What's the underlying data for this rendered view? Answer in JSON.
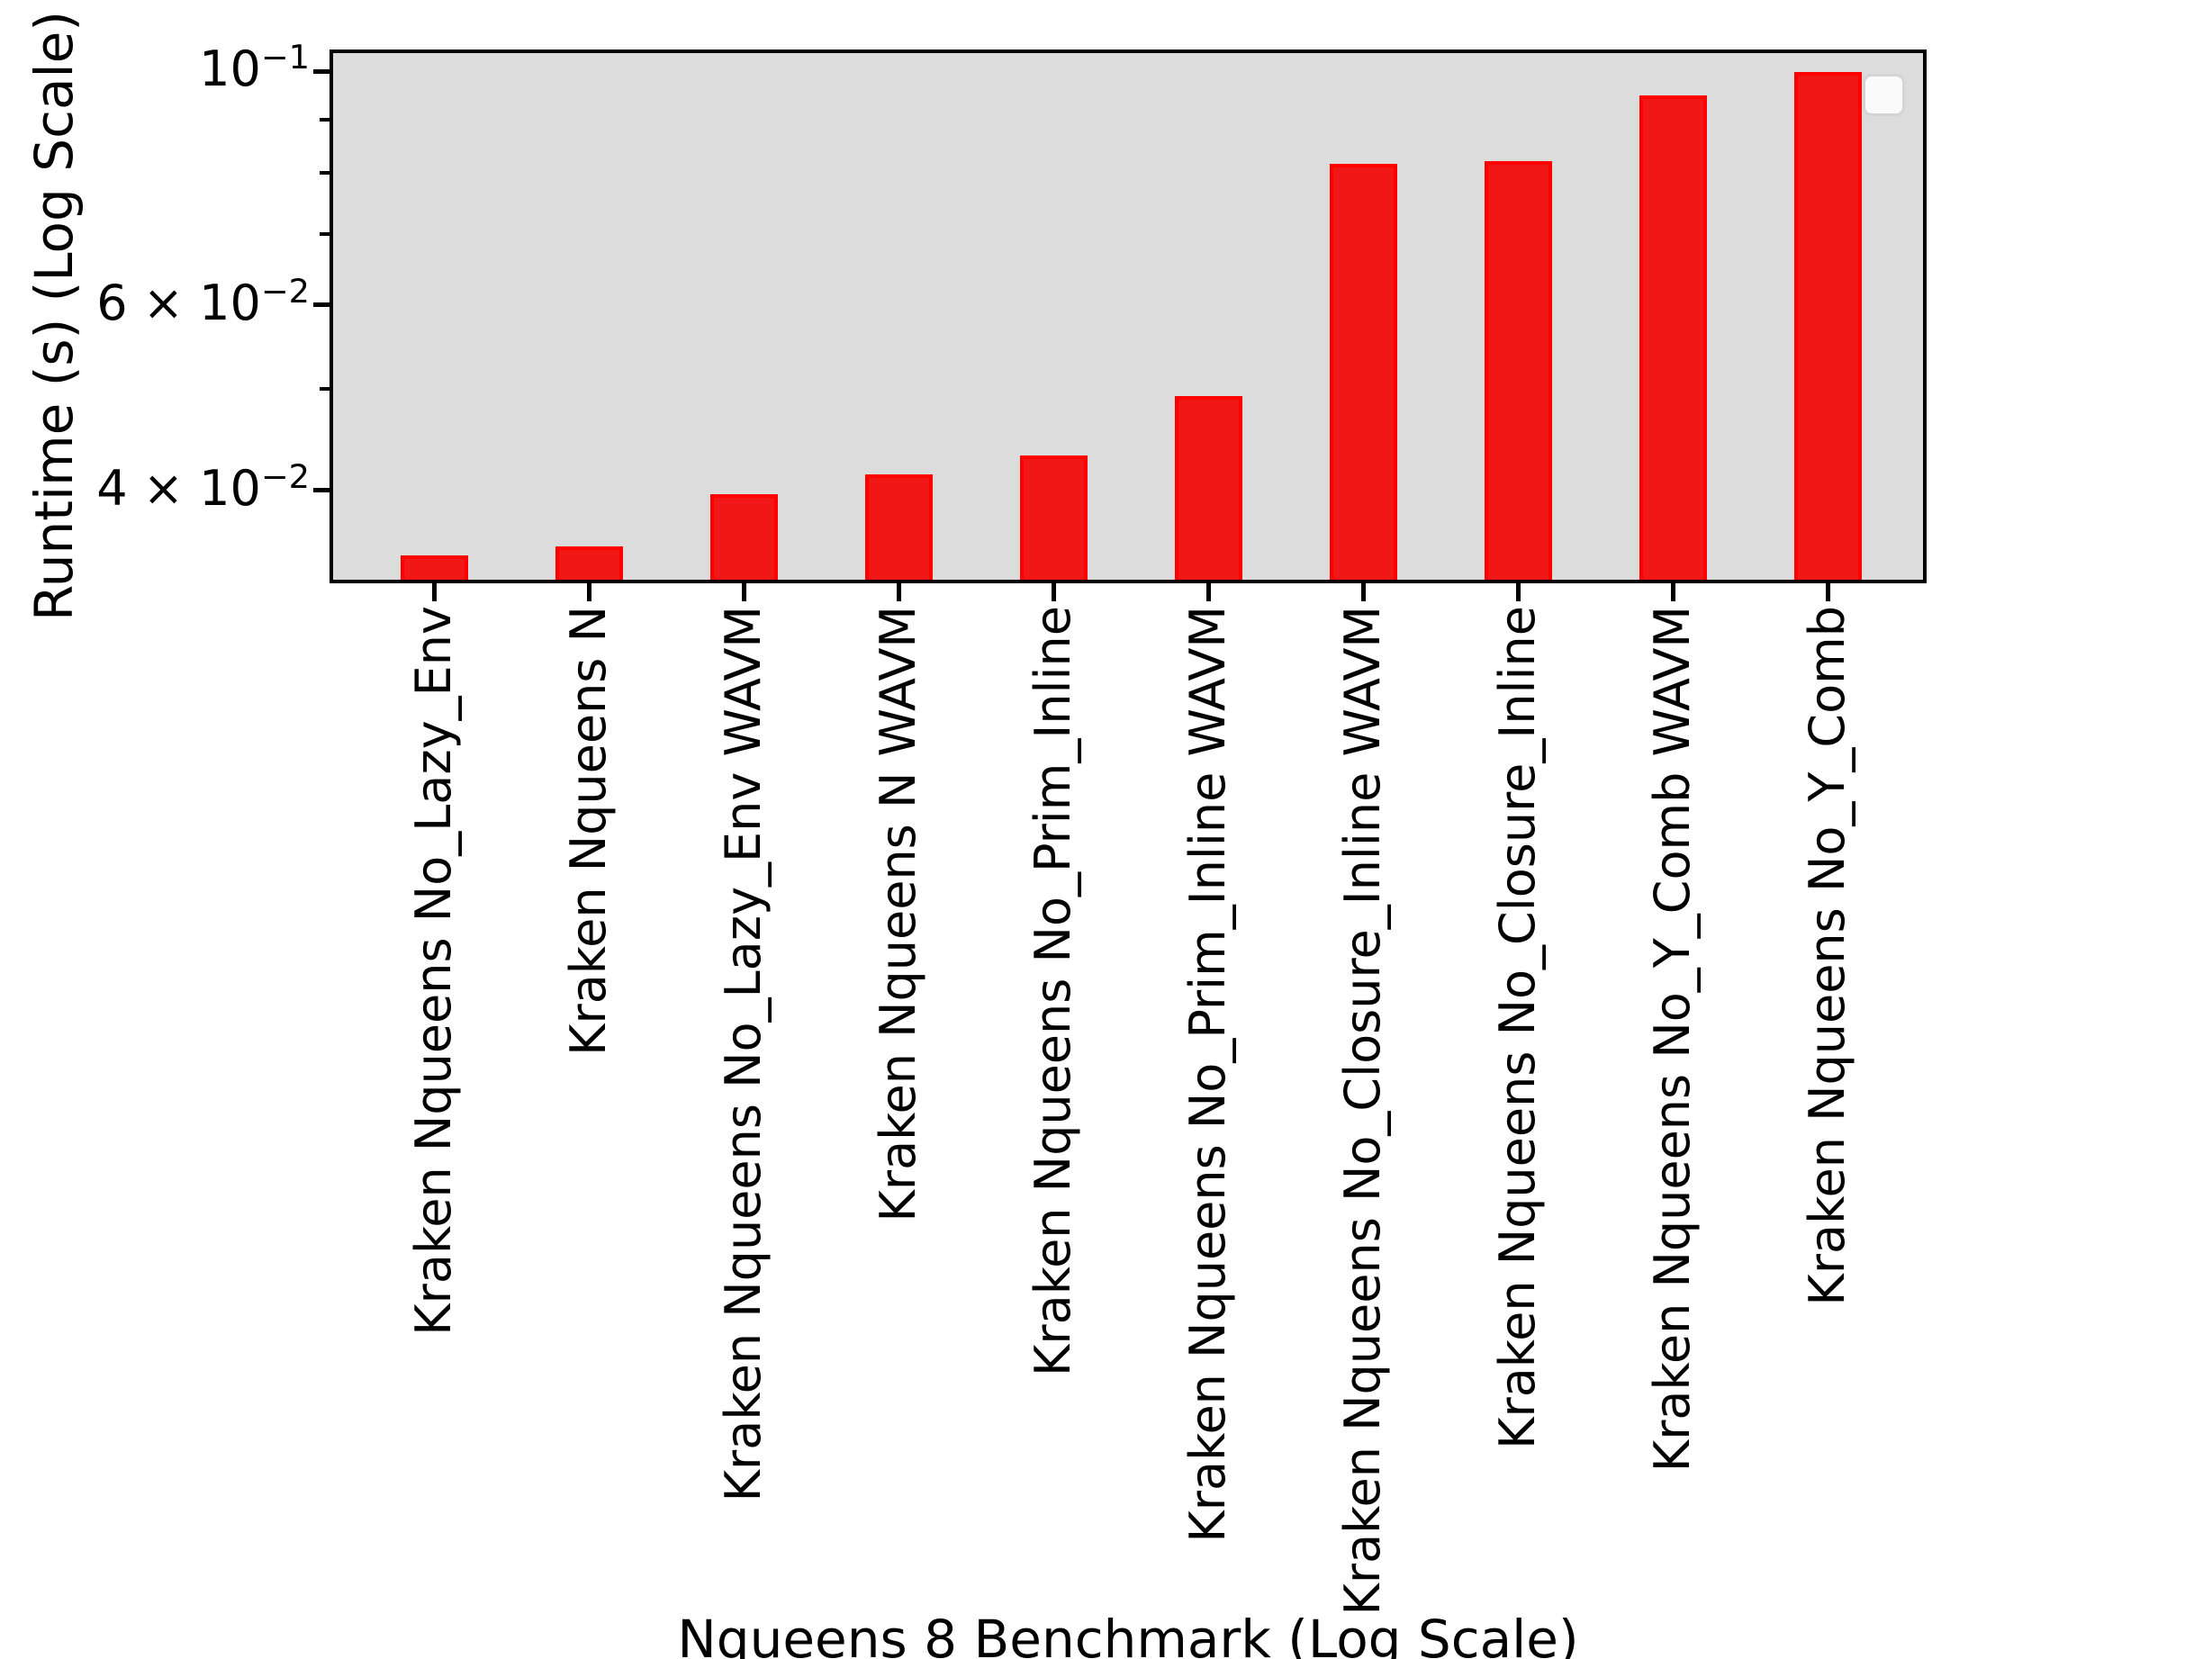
{
  "chart_data": {
    "type": "bar",
    "title": "",
    "xlabel": "Nqueens 8 Benchmark (Log Scale)",
    "ylabel": "Runtime (s) (Log Scale)",
    "yscale": "log",
    "ylim": [
      0.033,
      0.105
    ],
    "grid": false,
    "legend": {
      "visible": true,
      "entries": []
    },
    "plot_background": "#dcdcdc",
    "bar_color": "#f21717",
    "bar_edge_color": "#ff0000",
    "categories": [
      "Kraken Nqueens No_Lazy_Env",
      "Kraken Nqueens N",
      "Kraken Nqueens No_Lazy_Env WAVM",
      "Kraken Nqueens N WAVM",
      "Kraken Nqueens No_Prim_Inline",
      "Kraken Nqueens No_Prim_Inline WAVM",
      "Kraken Nqueens No_Closure_Inline WAVM",
      "Kraken Nqueens No_Closure_Inline",
      "Kraken Nqueens No_Y_Comb WAVM",
      "Kraken Nqueens No_Y_Comb"
    ],
    "values": [
      0.0347,
      0.0354,
      0.0397,
      0.0414,
      0.0432,
      0.0492,
      0.0817,
      0.0821,
      0.0948,
      0.0998
    ],
    "units": "seconds",
    "y_axis": {
      "major_ticks": [
        {
          "base": "10",
          "exp": "−1",
          "value": 0.1
        },
        {
          "base": "6 × 10",
          "exp": "−2",
          "value": 0.06
        },
        {
          "base": "4 × 10",
          "exp": "−2",
          "value": 0.04
        }
      ],
      "minor_tick_values": [
        0.09,
        0.08,
        0.07,
        0.05
      ]
    }
  }
}
